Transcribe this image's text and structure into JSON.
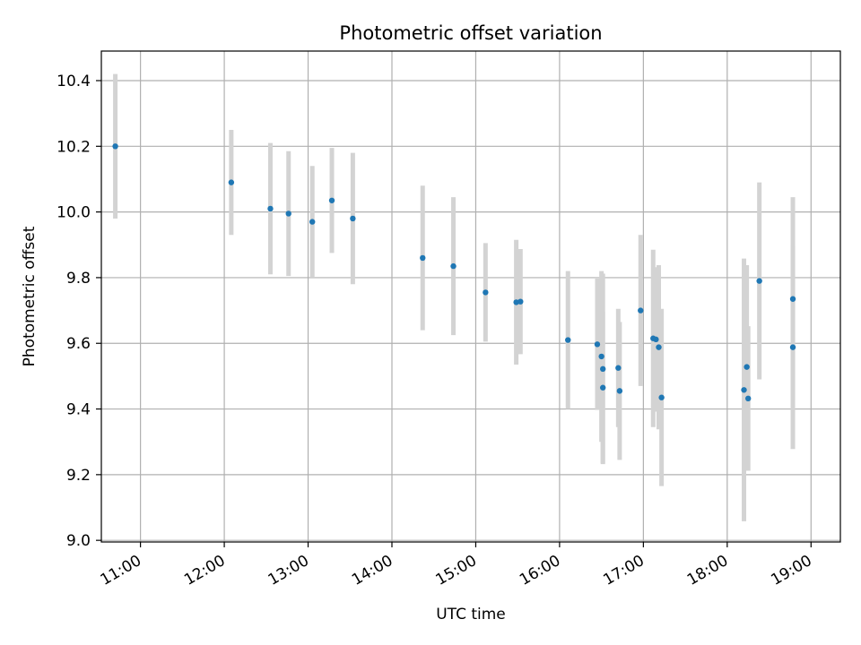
{
  "chart_data": {
    "type": "scatter",
    "title": "Photometric offset variation",
    "xlabel": "UTC time",
    "ylabel": "Photometric offset",
    "x_tick_labels": [
      "11:00",
      "12:00",
      "13:00",
      "14:00",
      "15:00",
      "16:00",
      "17:00",
      "18:00",
      "19:00"
    ],
    "y_tick_labels": [
      "9.0",
      "9.2",
      "9.4",
      "9.6",
      "9.8",
      "10.0",
      "10.2",
      "10.4"
    ],
    "xlim": [
      "10:32",
      "19:21"
    ],
    "ylim": [
      8.995,
      10.49
    ],
    "grid": true,
    "colors": {
      "marker": "#1f77b4",
      "errorbar": "#d3d3d3",
      "grid": "#b0b0b0"
    },
    "points": [
      {
        "x": "10:42",
        "y": 10.2,
        "yerr": 0.22
      },
      {
        "x": "12:05",
        "y": 10.09,
        "yerr": 0.16
      },
      {
        "x": "12:33",
        "y": 10.01,
        "yerr": 0.2
      },
      {
        "x": "12:46",
        "y": 9.995,
        "yerr": 0.19
      },
      {
        "x": "13:03",
        "y": 9.97,
        "yerr": 0.17
      },
      {
        "x": "13:17",
        "y": 10.035,
        "yerr": 0.16
      },
      {
        "x": "13:32",
        "y": 9.98,
        "yerr": 0.2
      },
      {
        "x": "14:22",
        "y": 9.86,
        "yerr": 0.22
      },
      {
        "x": "14:44",
        "y": 9.835,
        "yerr": 0.21
      },
      {
        "x": "15:07",
        "y": 9.755,
        "yerr": 0.15
      },
      {
        "x": "15:29",
        "y": 9.725,
        "yerr": 0.19
      },
      {
        "x": "15:32",
        "y": 9.727,
        "yerr": 0.16
      },
      {
        "x": "16:06",
        "y": 9.61,
        "yerr": 0.21
      },
      {
        "x": "16:27",
        "y": 9.597,
        "yerr": 0.2
      },
      {
        "x": "16:30",
        "y": 9.56,
        "yerr": 0.26
      },
      {
        "x": "16:31",
        "y": 9.522,
        "yerr": 0.29
      },
      {
        "x": "16:31",
        "y": 9.465,
        "yerr": 0.23
      },
      {
        "x": "16:42",
        "y": 9.525,
        "yerr": 0.18
      },
      {
        "x": "16:43",
        "y": 9.455,
        "yerr": 0.21
      },
      {
        "x": "16:58",
        "y": 9.7,
        "yerr": 0.23
      },
      {
        "x": "17:07",
        "y": 9.615,
        "yerr": 0.27
      },
      {
        "x": "17:09",
        "y": 9.612,
        "yerr": 0.22
      },
      {
        "x": "17:11",
        "y": 9.588,
        "yerr": 0.25
      },
      {
        "x": "17:13",
        "y": 9.435,
        "yerr": 0.27
      },
      {
        "x": "18:12",
        "y": 9.458,
        "yerr": 0.4
      },
      {
        "x": "18:14",
        "y": 9.528,
        "yerr": 0.31
      },
      {
        "x": "18:15",
        "y": 9.432,
        "yerr": 0.22
      },
      {
        "x": "18:23",
        "y": 9.79,
        "yerr": 0.3
      },
      {
        "x": "18:47",
        "y": 9.735,
        "yerr": 0.31
      },
      {
        "x": "18:47",
        "y": 9.588,
        "yerr": 0.31
      }
    ]
  }
}
